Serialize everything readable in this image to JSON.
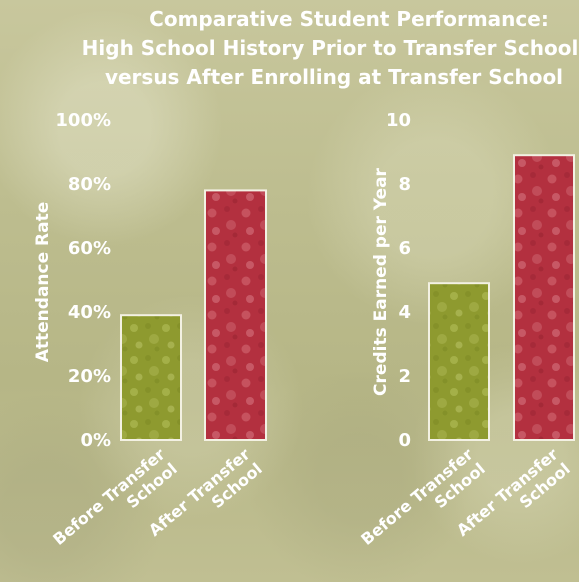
{
  "chart_data": [
    {
      "type": "bar",
      "title": "Comparative Student Performance: High School History Prior to Transfer School versus After Enrolling at Transfer School",
      "title_lines": [
        "Comparative Student Performance:",
        "High School History Prior to Transfer School",
        "versus After Enrolling at Transfer School"
      ],
      "ylabel": "Attendance Rate",
      "ylim": [
        0,
        100
      ],
      "yticks": [
        "0%",
        "20%",
        "40%",
        "60%",
        "80%",
        "100%"
      ],
      "categories": [
        [
          "Before Transfer",
          "School"
        ],
        [
          "After Transfer",
          "School"
        ]
      ],
      "values": [
        39,
        78
      ],
      "colors": [
        "#8e9a2f",
        "#b3303f"
      ]
    },
    {
      "type": "bar",
      "ylabel": "Credits Earned per Year",
      "ylim": [
        0,
        10
      ],
      "yticks": [
        "0",
        "2",
        "4",
        "6",
        "8",
        "10"
      ],
      "categories": [
        [
          "Before Transfer",
          "School"
        ],
        [
          "After Transfer",
          "School"
        ]
      ],
      "values": [
        4.9,
        8.9
      ],
      "colors": [
        "#8e9a2f",
        "#b3303f"
      ]
    }
  ]
}
